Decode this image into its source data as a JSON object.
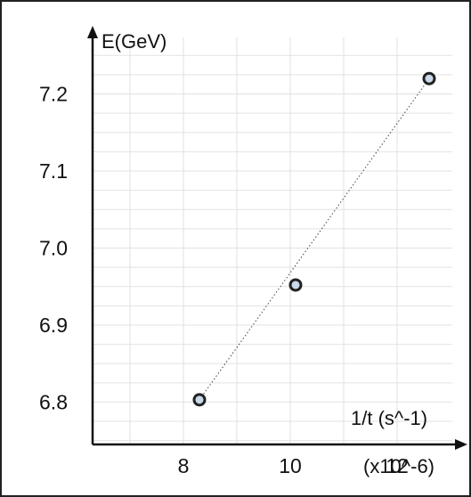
{
  "chart_data": {
    "type": "scatter",
    "title": "",
    "xlabel": "1/t (s^-1)",
    "ylabel": "E(GeV)",
    "x_multiplier_label": "(x10^-6)",
    "xlim": [
      6.3,
      13.1
    ],
    "ylim": [
      6.745,
      7.285
    ],
    "x_ticks": [
      8,
      10,
      12
    ],
    "x_tick_labels": [
      "8",
      "10",
      "12"
    ],
    "y_ticks": [
      6.8,
      6.9,
      7.0,
      7.1,
      7.2
    ],
    "y_tick_labels": [
      "6.8",
      "6.9",
      "7.0",
      "7.1",
      "7.2"
    ],
    "grid": true,
    "series": [
      {
        "x": [
          8.3,
          10.1,
          12.6
        ],
        "y": [
          6.803,
          6.952,
          7.22
        ],
        "style": "circle-markers"
      }
    ],
    "fit_line": {
      "x": [
        8.3,
        12.6
      ],
      "y": [
        6.803,
        7.22
      ],
      "style": "dotted"
    }
  }
}
